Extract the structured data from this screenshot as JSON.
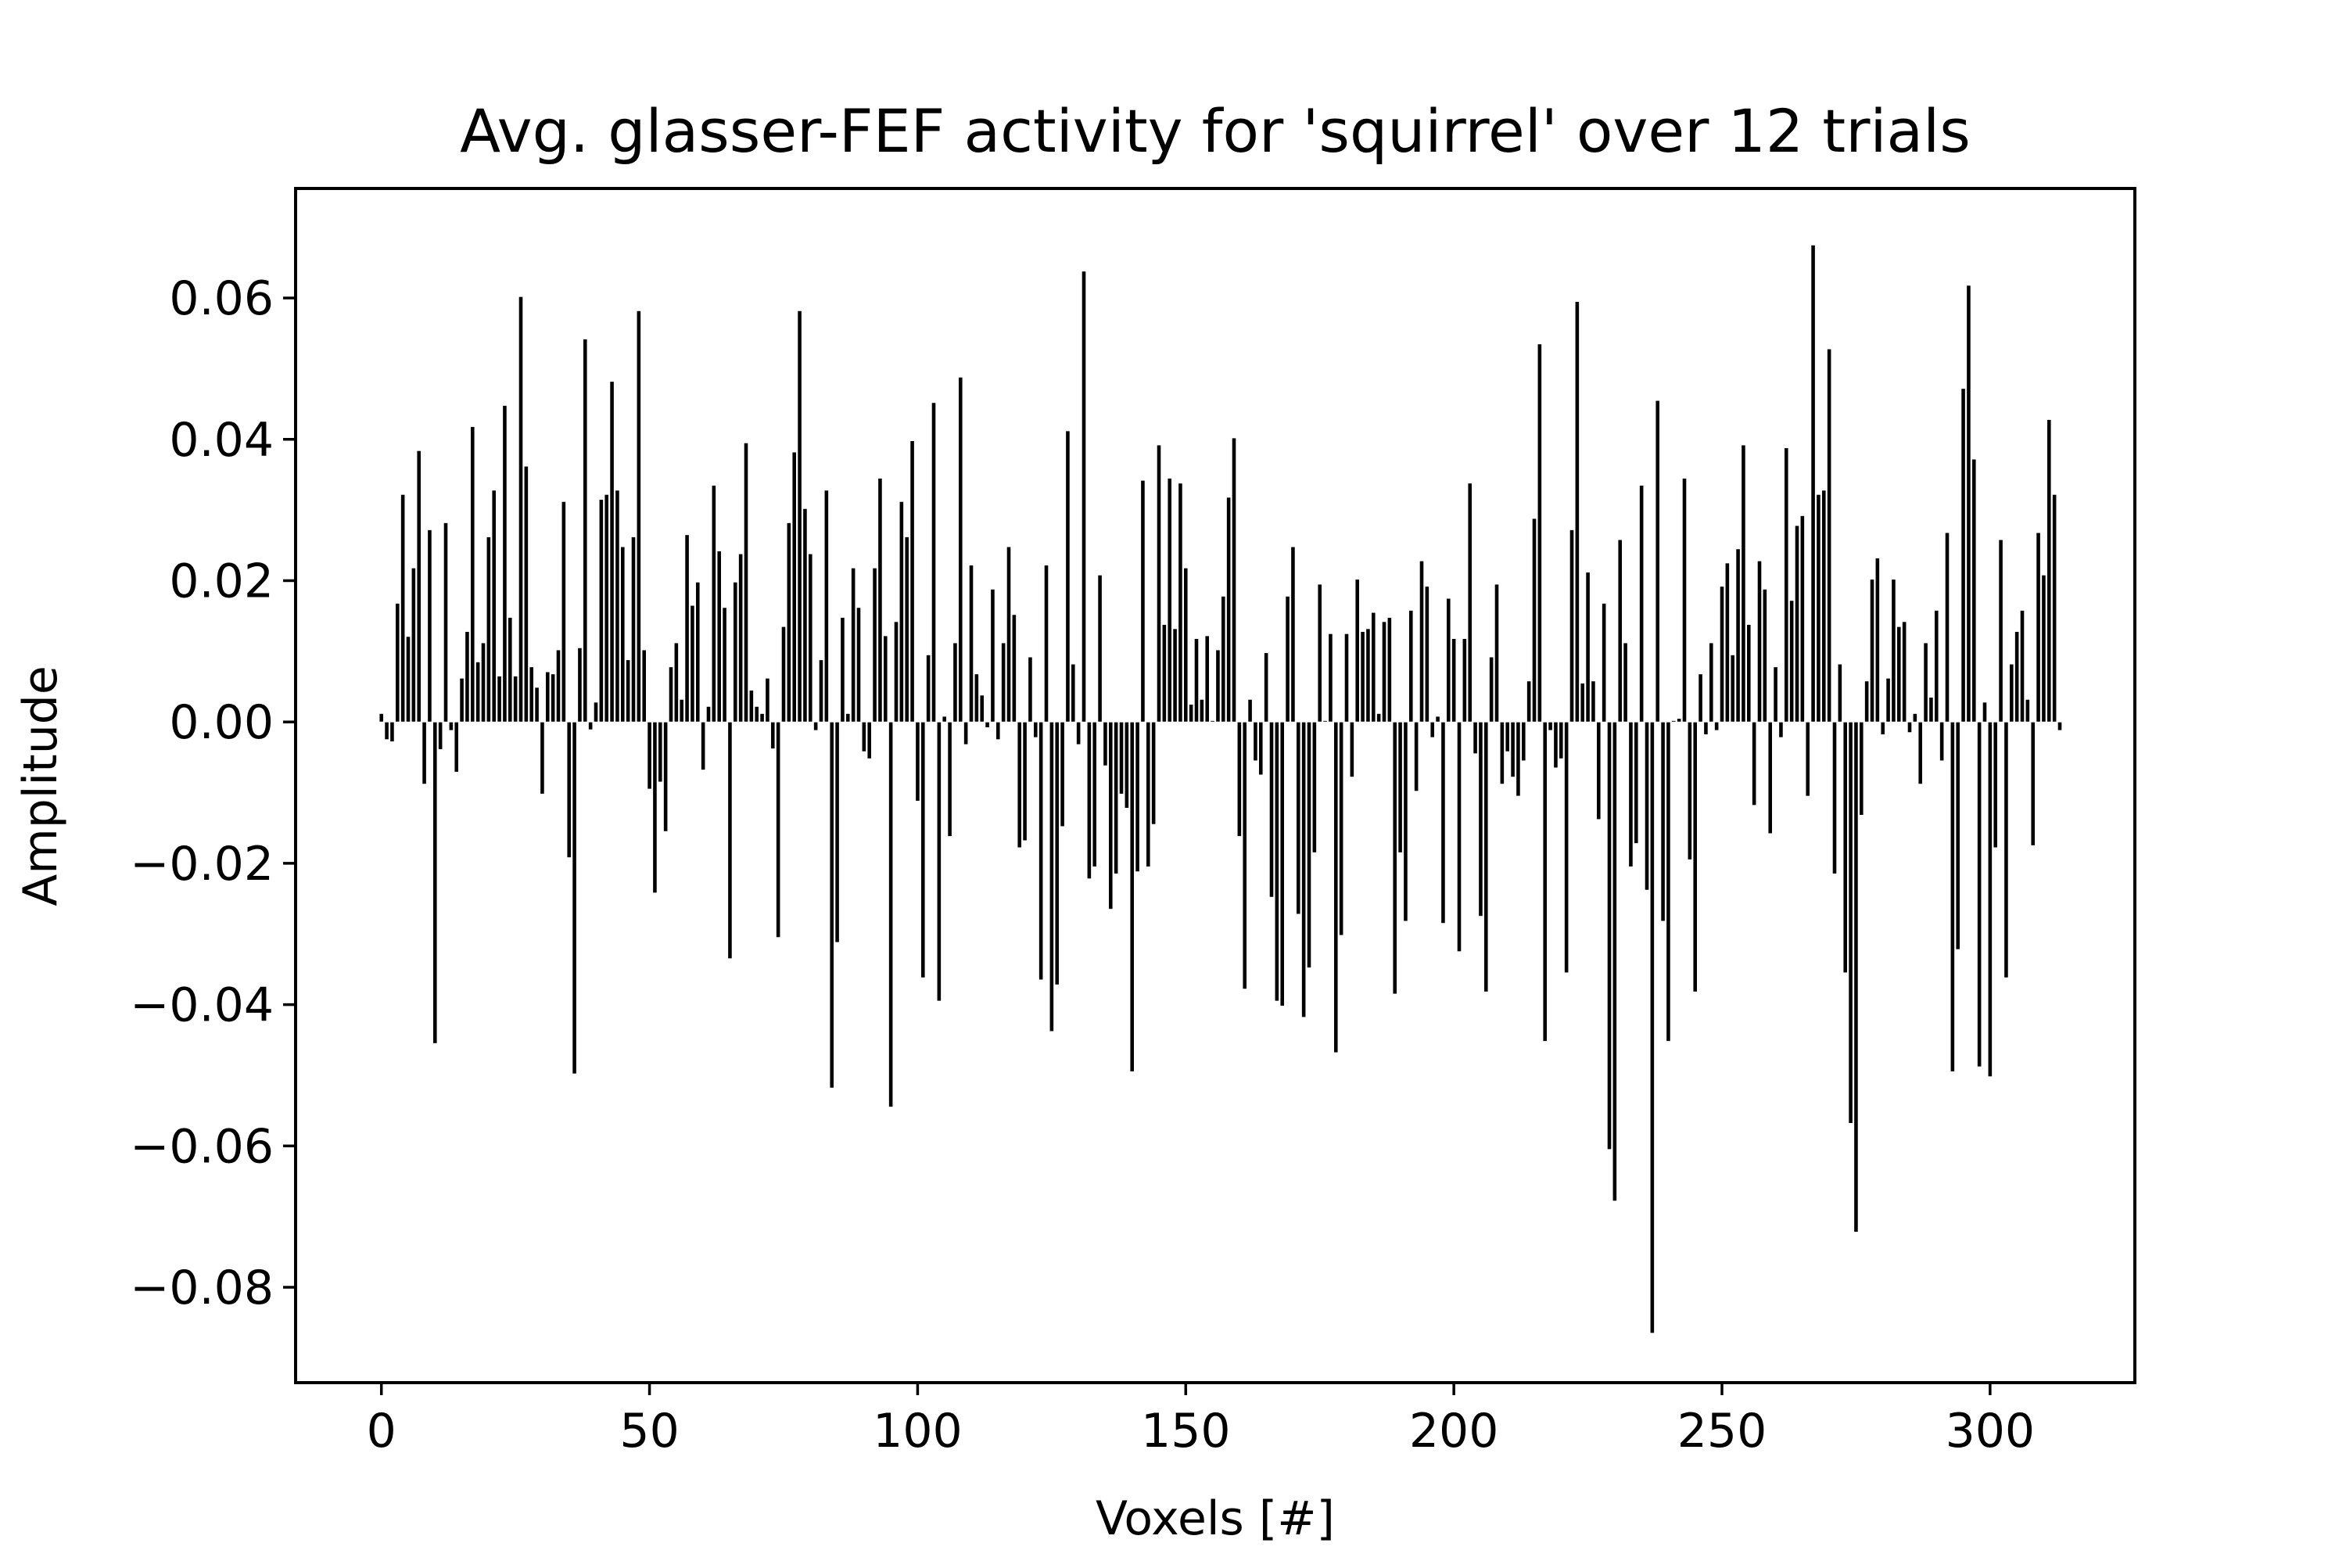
{
  "chart_data": {
    "type": "bar",
    "title": "Avg. glasser-FEF activity for 'squirrel' over 12 trials",
    "xlabel": "Voxels [#]",
    "ylabel": "Amplitude",
    "xlim": [
      -16,
      327
    ],
    "ylim": [
      -0.0935,
      0.0755
    ],
    "xticks": [
      0,
      50,
      100,
      150,
      200,
      250,
      300
    ],
    "xtick_labels": [
      "0",
      "50",
      "100",
      "150",
      "200",
      "250",
      "300"
    ],
    "yticks": [
      -0.08,
      -0.06,
      -0.04,
      -0.02,
      0.0,
      0.02,
      0.04,
      0.06
    ],
    "ytick_labels": [
      "−0.08",
      "−0.06",
      "−0.04",
      "−0.02",
      "0.00",
      "0.02",
      "0.04",
      "0.06"
    ],
    "grid": false,
    "bar_color": "#000000",
    "series": [
      {
        "values": [
          0.0012,
          -0.0025,
          -0.0028,
          0.0168,
          0.0322,
          0.0121,
          0.0218,
          0.0384,
          -0.0088,
          0.0272,
          -0.0455,
          -0.0039,
          0.0282,
          -0.0012,
          -0.0071,
          0.0062,
          0.0128,
          0.0418,
          0.0085,
          0.0112,
          0.0262,
          0.0328,
          0.0065,
          0.0448,
          0.0148,
          0.0065,
          0.0602,
          0.0362,
          0.0078,
          0.0049,
          -0.0102,
          0.0071,
          0.0068,
          0.0102,
          0.0312,
          -0.0192,
          -0.0498,
          0.0105,
          0.0542,
          -0.0011,
          0.0028,
          0.0315,
          0.0322,
          0.0482,
          0.0328,
          0.0248,
          0.0088,
          0.0262,
          0.0582,
          0.0102,
          -0.0095,
          -0.0242,
          -0.0085,
          -0.0155,
          0.0078,
          0.0112,
          0.0032,
          0.0265,
          0.0165,
          0.0198,
          -0.0068,
          0.0022,
          0.0335,
          0.0242,
          0.0162,
          -0.0335,
          0.0198,
          0.0238,
          0.0395,
          0.0045,
          0.0022,
          0.0012,
          0.0062,
          -0.0038,
          -0.0305,
          0.0135,
          0.0282,
          0.0382,
          0.0582,
          0.0302,
          0.0238,
          -0.0012,
          0.0088,
          0.0328,
          -0.0518,
          -0.0312,
          0.0148,
          0.0012,
          0.0218,
          0.0162,
          -0.0042,
          -0.0052,
          0.0218,
          0.0345,
          0.0122,
          -0.0545,
          0.0142,
          0.0312,
          0.0262,
          0.0398,
          -0.0112,
          -0.0362,
          0.0095,
          0.0452,
          -0.0395,
          0.0008,
          -0.0162,
          0.0112,
          0.0488,
          -0.0032,
          0.0222,
          0.0068,
          0.0038,
          -0.0008,
          0.0188,
          -0.0025,
          0.0112,
          0.0248,
          0.0152,
          -0.0178,
          -0.0168,
          0.0092,
          -0.0022,
          -0.0365,
          0.0222,
          -0.0438,
          -0.0372,
          -0.0148,
          0.0412,
          0.0082,
          -0.0032,
          0.0638,
          -0.0222,
          -0.0205,
          0.0208,
          -0.0062,
          -0.0265,
          -0.0215,
          -0.0102,
          -0.0122,
          -0.0495,
          -0.0212,
          0.0342,
          -0.0205,
          -0.0145,
          0.0392,
          0.0138,
          0.0345,
          0.0132,
          0.0338,
          0.0218,
          0.0025,
          0.0118,
          0.0032,
          0.0122,
          0.0002,
          0.0102,
          0.0178,
          0.0318,
          0.0402,
          -0.0162,
          -0.0378,
          0.0032,
          -0.0055,
          -0.0075,
          0.0098,
          -0.0248,
          -0.0395,
          -0.0402,
          0.0178,
          0.0248,
          -0.0272,
          -0.0418,
          -0.0348,
          -0.0185,
          0.0195,
          0.0002,
          0.0125,
          -0.0468,
          -0.0302,
          0.0125,
          -0.0078,
          0.0202,
          0.0128,
          0.0132,
          0.0155,
          0.0012,
          0.0142,
          0.0148,
          -0.0385,
          -0.0185,
          -0.0282,
          0.0158,
          -0.0098,
          0.0228,
          0.0192,
          -0.0022,
          0.0008,
          -0.0285,
          0.0175,
          0.0118,
          -0.0325,
          0.0118,
          0.0338,
          -0.0045,
          -0.0275,
          -0.0382,
          0.0092,
          0.0195,
          -0.0088,
          -0.0042,
          -0.0078,
          -0.0105,
          -0.0055,
          0.0058,
          0.0288,
          0.0535,
          -0.0452,
          -0.0012,
          -0.0065,
          -0.0052,
          -0.0355,
          0.0272,
          0.0595,
          0.0055,
          0.0212,
          0.0058,
          -0.0138,
          0.0168,
          -0.0605,
          -0.0678,
          0.0258,
          0.0112,
          -0.0205,
          -0.0172,
          0.0335,
          -0.0238,
          -0.0865,
          0.0455,
          -0.0282,
          -0.0452,
          0.0002,
          0.0005,
          0.0345,
          -0.0195,
          -0.0382,
          0.0068,
          -0.0018,
          0.0112,
          -0.0012,
          0.0192,
          0.0225,
          0.0095,
          0.0245,
          0.0392,
          0.0138,
          -0.0118,
          0.0228,
          0.0188,
          -0.0158,
          0.0078,
          -0.0022,
          0.0388,
          0.0172,
          0.0278,
          0.0292,
          -0.0105,
          0.0675,
          0.0322,
          0.0328,
          0.0528,
          -0.0215,
          0.0082,
          -0.0355,
          -0.0568,
          -0.0722,
          -0.0132,
          0.0058,
          0.0202,
          0.0232,
          -0.0018,
          0.0062,
          0.0202,
          0.0135,
          0.0142,
          -0.0015,
          0.0012,
          -0.0088,
          0.0112,
          0.0035,
          0.0158,
          -0.0055,
          0.0268,
          -0.0495,
          -0.0322,
          0.0472,
          0.0618,
          0.0372,
          -0.0488,
          0.0028,
          -0.0502,
          -0.0178,
          0.0258,
          -0.0362,
          0.0082,
          0.0128,
          0.0158,
          0.0032,
          -0.0175,
          0.0268,
          0.0208,
          0.0428,
          0.0322,
          -0.0012
        ]
      }
    ]
  }
}
